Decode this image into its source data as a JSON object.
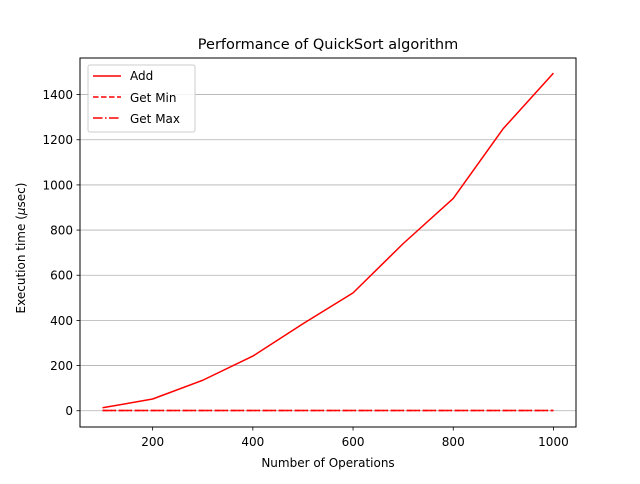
{
  "chart_data": {
    "type": "line",
    "title": "Performance of QuickSort algorithm",
    "xlabel": "Number of Operations",
    "ylabel_prefix": "Execution time (",
    "ylabel_mu": "μ",
    "ylabel_suffix": "sec)",
    "xlim": [
      55,
      1045
    ],
    "ylim": [
      -72,
      1562
    ],
    "xticks": [
      200,
      400,
      600,
      800,
      1000
    ],
    "yticks": [
      0,
      200,
      400,
      600,
      800,
      1000,
      1200,
      1400
    ],
    "grid": {
      "y": true,
      "x": false
    },
    "legend": {
      "placement": "upper-left"
    },
    "series": [
      {
        "name": "Add",
        "style": "solid",
        "color": "#ff0000",
        "x": [
          100,
          200,
          300,
          400,
          500,
          600,
          700,
          800,
          900,
          1000
        ],
        "y": [
          13,
          52,
          135,
          242,
          385,
          522,
          740,
          940,
          1250,
          1495
        ]
      },
      {
        "name": "Get Min",
        "style": "dashed",
        "color": "#ff0000",
        "x": [
          100,
          200,
          300,
          400,
          500,
          600,
          700,
          800,
          900,
          1000
        ],
        "y": [
          1,
          1,
          1,
          1,
          1,
          1,
          1,
          1,
          1,
          1
        ]
      },
      {
        "name": "Get Max",
        "style": "dashdot",
        "color": "#ff0000",
        "x": [
          100,
          200,
          300,
          400,
          500,
          600,
          700,
          800,
          900,
          1000
        ],
        "y": [
          1,
          1,
          1,
          1,
          1,
          1,
          1,
          1,
          1,
          1
        ]
      }
    ]
  }
}
